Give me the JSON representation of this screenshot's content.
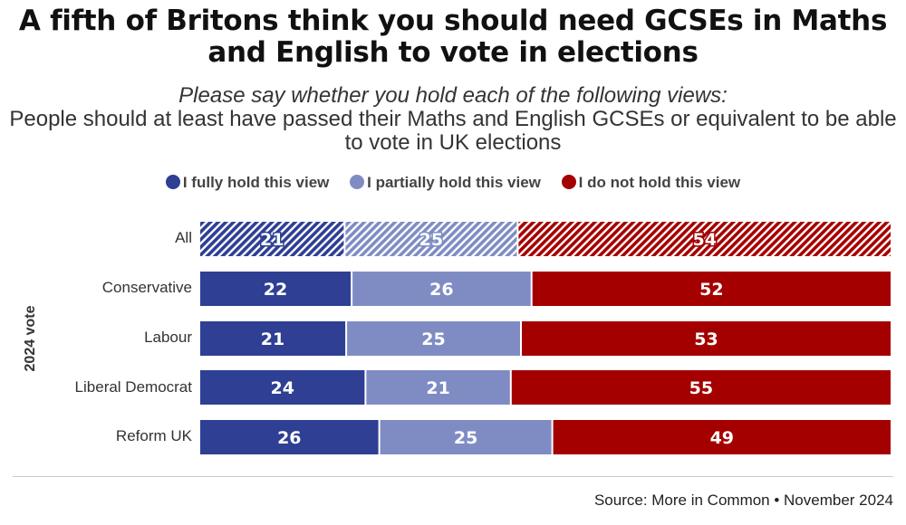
{
  "title": "A fifth of Britons think you should need GCSEs in Maths and English to vote in elections",
  "subtitle_question": "Please say whether you hold each of the following views:",
  "subtitle_statement": "People should at least have passed their Maths and English GCSEs or equivalent to be able to vote in UK elections",
  "source": "Source: More in Common • November 2024",
  "chart_data": {
    "type": "bar",
    "orientation": "horizontal",
    "stacked": true,
    "ylabel": "2024 vote",
    "legend_position": "top",
    "categories": [
      "All",
      "Conservative",
      "Labour",
      "Liberal Democrat",
      "Reform UK"
    ],
    "series": [
      {
        "name": "I fully hold this view",
        "color": "#2e3f94",
        "values": [
          21,
          22,
          21,
          24,
          26
        ]
      },
      {
        "name": "I partially hold this view",
        "color": "#7f8cc4",
        "values": [
          25,
          26,
          25,
          21,
          25
        ]
      },
      {
        "name": "I do not hold this view",
        "color": "#a50000",
        "values": [
          54,
          52,
          53,
          55,
          49
        ]
      }
    ],
    "hatched_categories": [
      "All"
    ]
  }
}
